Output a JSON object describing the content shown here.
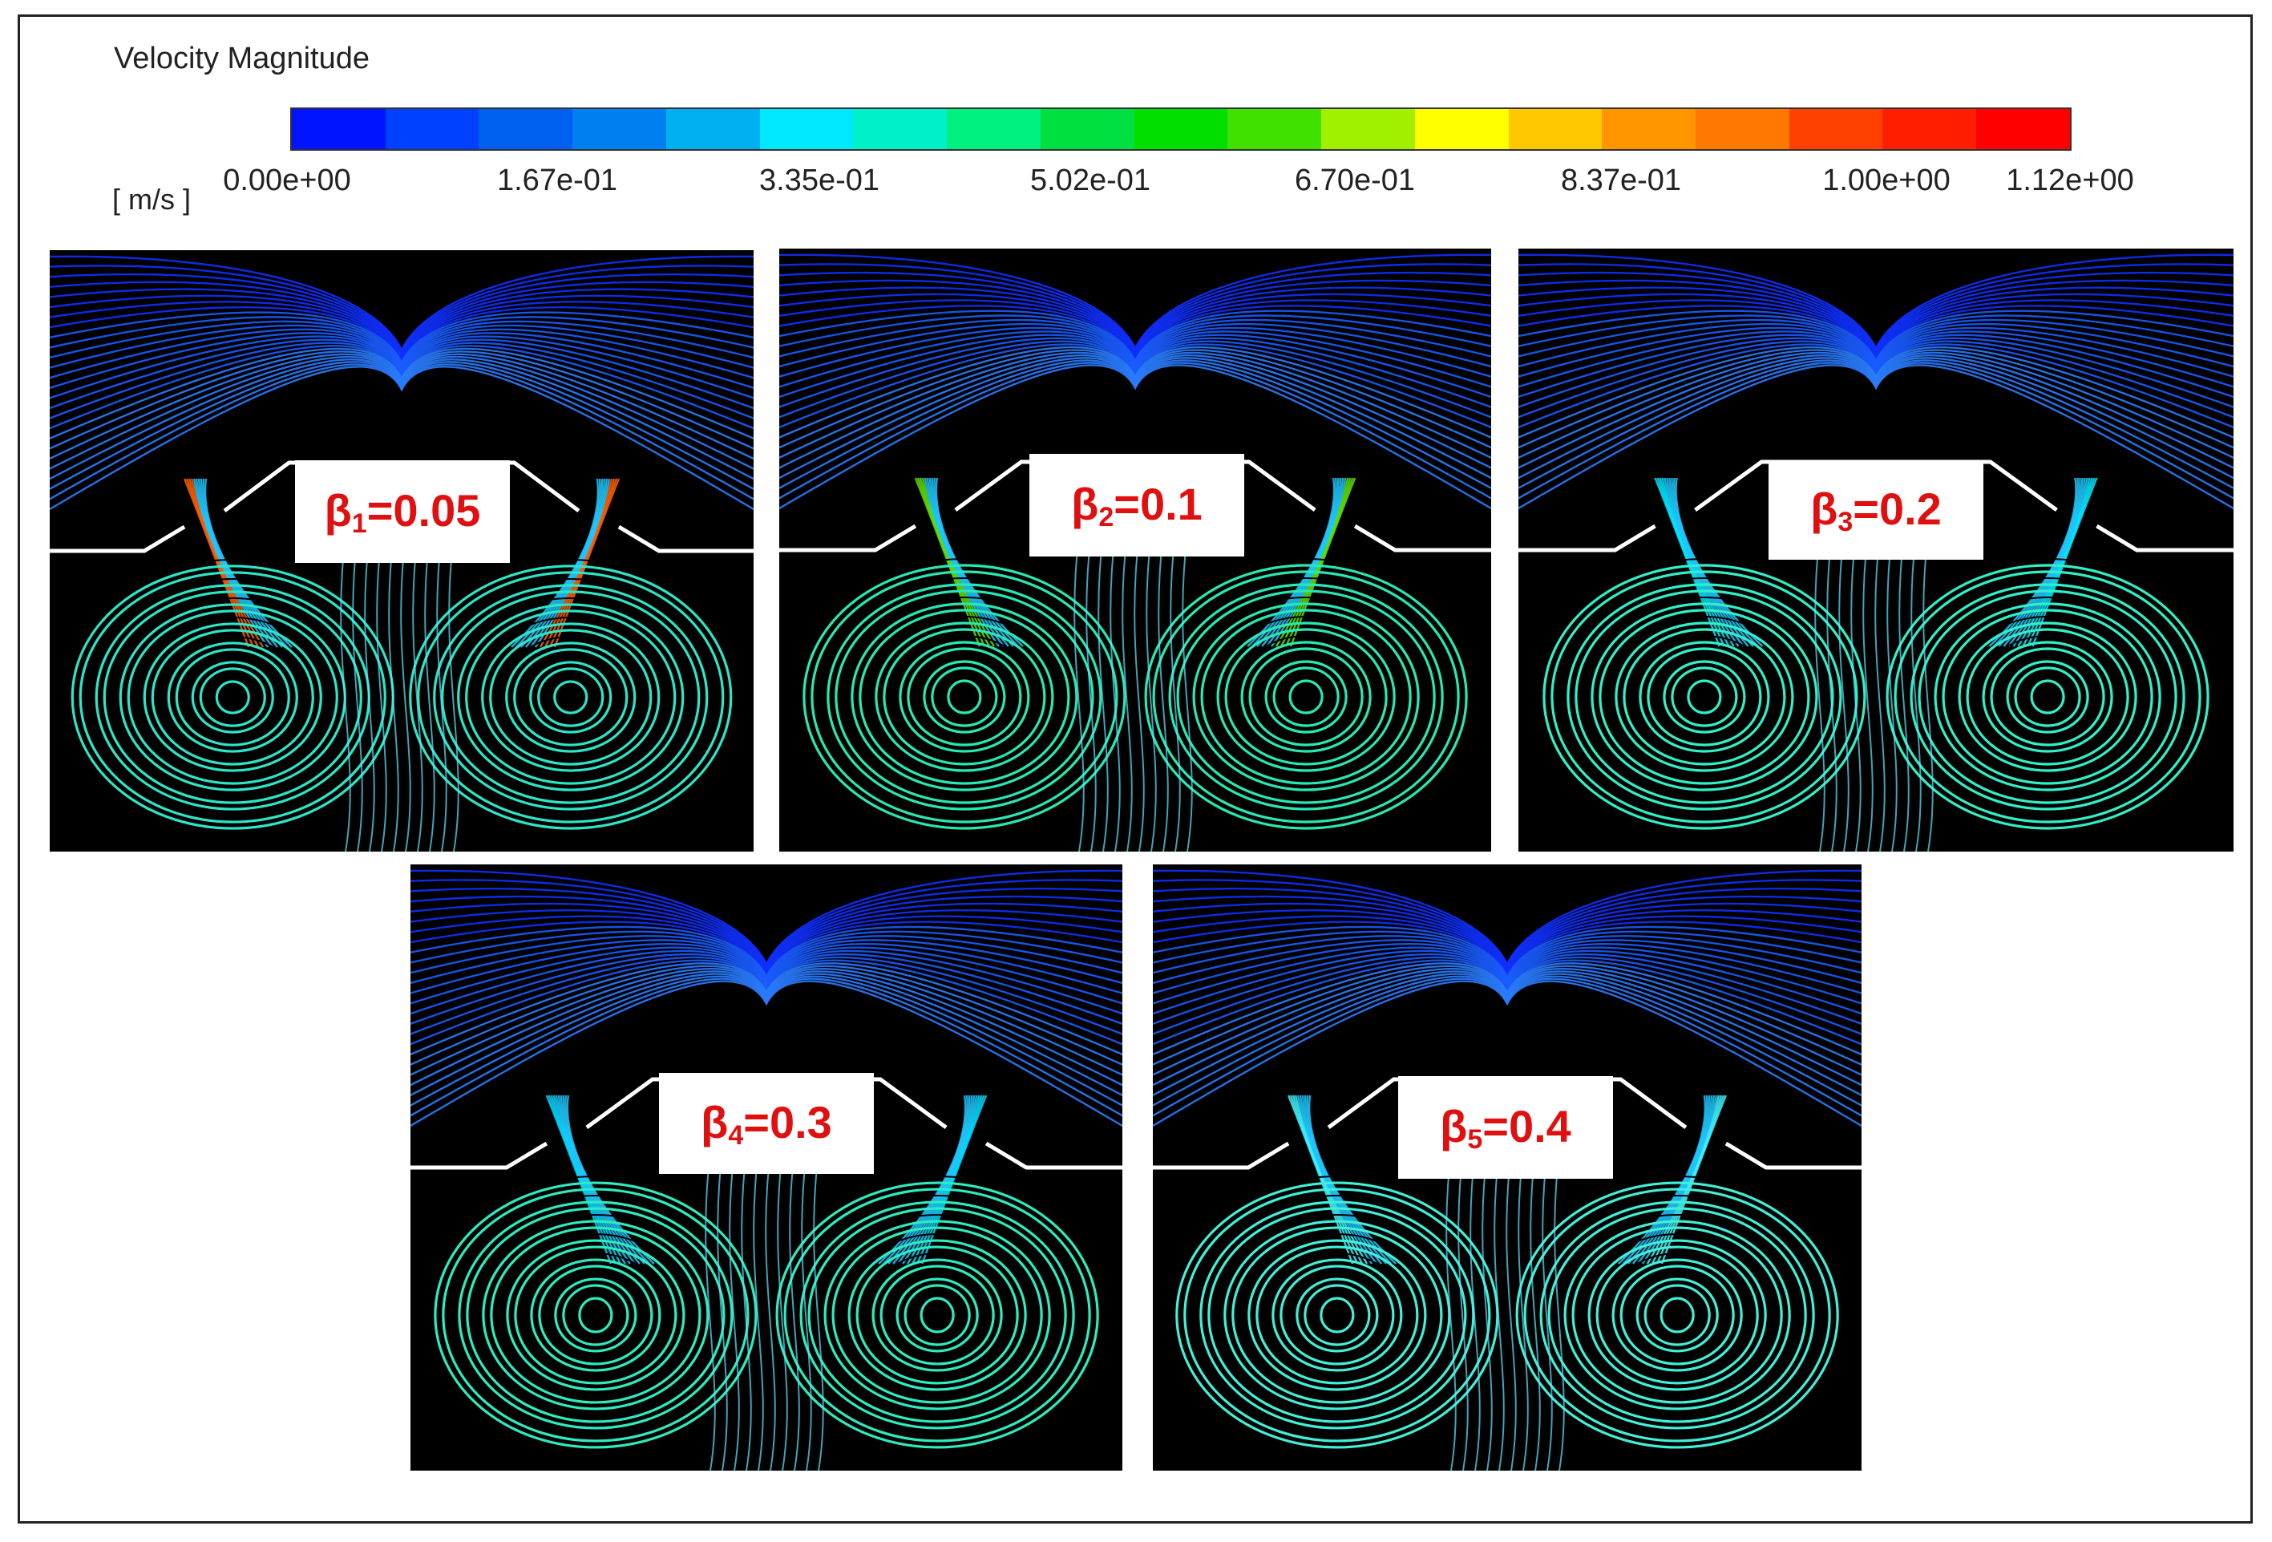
{
  "legend": {
    "title": "Velocity Magnitude",
    "unit": "[ m/s ]",
    "ticks": [
      "0.00e+00",
      "1.67e-01",
      "3.35e-01",
      "5.02e-01",
      "6.70e-01",
      "8.37e-01",
      "1.00e+00",
      "1.12e+00"
    ],
    "colors": [
      "#0014ff",
      "#0040ff",
      "#0060f0",
      "#0080f0",
      "#00b0f0",
      "#00e8ff",
      "#00f0c8",
      "#00f080",
      "#00e040",
      "#00e000",
      "#40e000",
      "#a0f000",
      "#ffff00",
      "#ffc800",
      "#ff9600",
      "#ff7800",
      "#ff4000",
      "#ff1e00",
      "#ff0000"
    ]
  },
  "panels": [
    {
      "symbol": "β",
      "sub": "1",
      "value": "=0.05",
      "vortex": "#2ce6c8",
      "hot": "#ff6000"
    },
    {
      "symbol": "β",
      "sub": "2",
      "value": "=0.1",
      "vortex": "#28e8b4",
      "hot": "#60e000"
    },
    {
      "symbol": "β",
      "sub": "3",
      "value": "=0.2",
      "vortex": "#30f0c8",
      "hot": "#00e8ff"
    },
    {
      "symbol": "β",
      "sub": "4",
      "value": "=0.3",
      "vortex": "#2cecc0",
      "hot": "#00d8ff"
    },
    {
      "symbol": "β",
      "sub": "5",
      "value": "=0.4",
      "vortex": "#40f0d8",
      "hot": "#40f4ff"
    }
  ]
}
